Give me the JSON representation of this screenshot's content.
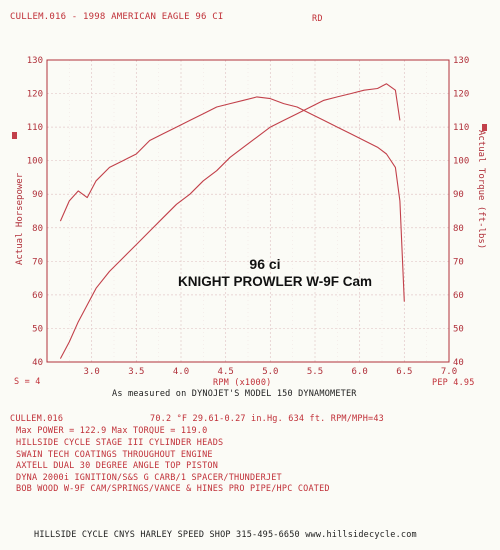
{
  "header": {
    "file_title": "CULLEM.016 - 1998 AMERICAN EAGLE 96 CI",
    "tag": "RD"
  },
  "chart_data": {
    "type": "line",
    "xlabel": "RPM (x1000)",
    "ylabel_left": "Actual Horsepower",
    "ylabel_right": "Actual Torque (ft-lbs)",
    "xlim": [
      2.5,
      7.0
    ],
    "ylim_left": [
      40,
      130
    ],
    "ylim_right": [
      40,
      130
    ],
    "x_ticks": [
      "3.0",
      "3.5",
      "4.0",
      "4.5",
      "5.0",
      "5.5",
      "6.0",
      "6.5",
      "7.0"
    ],
    "y_ticks_left": [
      "40",
      "50",
      "60",
      "70",
      "80",
      "90",
      "100",
      "110",
      "120",
      "130"
    ],
    "y_ticks_right": [
      "40",
      "50",
      "60",
      "70",
      "80",
      "90",
      "100",
      "110",
      "120",
      "130"
    ],
    "grid": true,
    "series": [
      {
        "axis": "left",
        "color": "#c2404a",
        "x": [
          2.65,
          2.75,
          2.85,
          2.95,
          3.05,
          3.2,
          3.35,
          3.5,
          3.65,
          3.8,
          3.95,
          4.1,
          4.25,
          4.4,
          4.55,
          4.7,
          4.85,
          5.0,
          5.15,
          5.3,
          5.45,
          5.6,
          5.75,
          5.9,
          6.05,
          6.2,
          6.3,
          6.4,
          6.45
        ],
        "values": [
          41,
          46,
          52,
          57,
          62,
          67,
          71,
          75,
          79,
          83,
          87,
          90,
          94,
          97,
          101,
          104,
          107,
          110,
          112,
          114,
          116,
          118,
          119,
          120,
          121,
          121.5,
          122.9,
          121,
          112
        ]
      },
      {
        "axis": "right",
        "color": "#c2404a",
        "x": [
          2.65,
          2.75,
          2.85,
          2.95,
          3.05,
          3.2,
          3.35,
          3.5,
          3.65,
          3.8,
          3.95,
          4.1,
          4.25,
          4.4,
          4.55,
          4.7,
          4.85,
          5.0,
          5.15,
          5.3,
          5.45,
          5.6,
          5.75,
          5.9,
          6.05,
          6.2,
          6.3,
          6.4,
          6.45,
          6.5
        ],
        "values": [
          82,
          88,
          91,
          89,
          94,
          98,
          100,
          102,
          106,
          108,
          110,
          112,
          114,
          116,
          117,
          118,
          119,
          118.5,
          117,
          116,
          114,
          112,
          110,
          108,
          106,
          104,
          102,
          98,
          88,
          58
        ]
      }
    ],
    "annotation_line1": "96 ci",
    "annotation_line2": "KNIGHT PROWLER W-9F Cam",
    "smoothing_label": "S = 4",
    "pep_label": "PEP 4.95",
    "xlabel_note": "As measured on DYNOJET'S MODEL 150 DYNAMOMETER"
  },
  "run_info": {
    "file": "CULLEM.016",
    "conditions": "70.2 °F   29.61-0.27 in.Hg.   634 ft.   RPM/MPH=43",
    "max_line": "Max POWER = 122.9   Max TORQUE = 119.0",
    "notes": [
      "HILLSIDE CYCLE STAGE III CYLINDER HEADS",
      "SWAIN TECH COATINGS THROUGHOUT ENGINE",
      "AXTELL DUAL 30 DEGREE ANGLE TOP PISTON",
      "DYNA 2000i IGNITION/S&S G CARB/1 SPACER/THUNDERJET",
      "BOB WOOD W-9F CAM/SPRINGS/VANCE & HINES PRO PIPE/HPC COATED"
    ]
  },
  "footer": {
    "text": "HILLSIDE CYCLE CNYS HARLEY SPEED SHOP 315-495-6650 www.hillsidecycle.com"
  }
}
